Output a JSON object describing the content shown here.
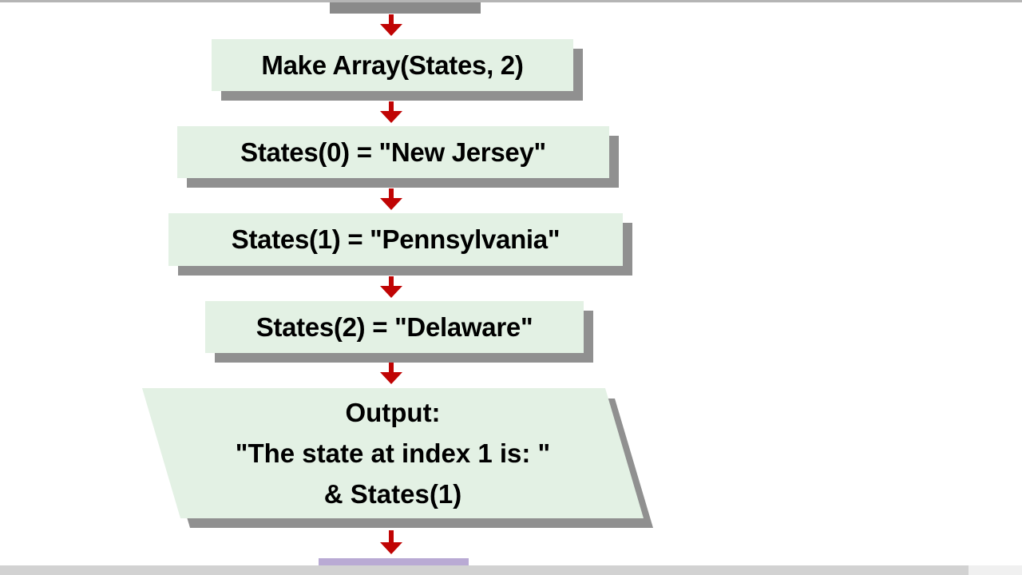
{
  "colors": {
    "background": "#ffffff",
    "node_fill": "#e3f1e4",
    "node_shadow": "#909090",
    "arrow_red": "#c00404",
    "text": "#000000",
    "top_edge_line": "#b5b5b5",
    "cutoff_top_shadow": "#8a8a8a",
    "cutoff_bottom_fill": "#b9aad4",
    "bottom_bar": "#d2d2d2",
    "bottom_bar_right": "#f0f0f0"
  },
  "icons": {
    "down_arrow": "▼"
  },
  "flowchart": {
    "steps": [
      {
        "id": "make-array",
        "type": "process",
        "label": "Make Array(States, 2)"
      },
      {
        "id": "assign-index-0",
        "type": "process",
        "label": "States(0) = \"New Jersey\""
      },
      {
        "id": "assign-index-1",
        "type": "process",
        "label": "States(1) = \"Pennsylvania\""
      },
      {
        "id": "assign-index-2",
        "type": "process",
        "label": "States(2) = \"Delaware\""
      },
      {
        "id": "output",
        "type": "io",
        "lines": [
          "Output:",
          "\"The state at index 1 is: \"",
          "& States(1)"
        ]
      }
    ]
  }
}
